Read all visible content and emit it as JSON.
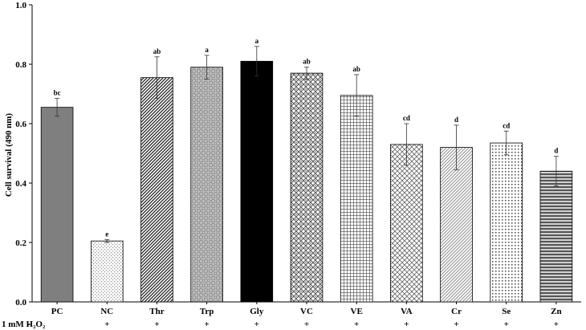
{
  "chart_data": {
    "type": "bar",
    "title": "",
    "xlabel": "",
    "ylabel": "Cell survival (490 nm)",
    "ylim": [
      0,
      1.0
    ],
    "yticks": [
      "0.0",
      "0.2",
      "0.4",
      "0.6",
      "0.8",
      "1.0"
    ],
    "ytick_values": [
      0,
      0.2,
      0.4,
      0.6,
      0.8,
      1.0
    ],
    "categories": [
      "PC",
      "NC",
      "Thr",
      "Trp",
      "Gly",
      "VC",
      "VE",
      "VA",
      "Cr",
      "Se",
      "Zn"
    ],
    "values": [
      0.655,
      0.205,
      0.755,
      0.79,
      0.81,
      0.77,
      0.695,
      0.53,
      0.52,
      0.535,
      0.44
    ],
    "errors": [
      0.03,
      0.005,
      0.07,
      0.04,
      0.05,
      0.02,
      0.07,
      0.07,
      0.075,
      0.04,
      0.05
    ],
    "significance": [
      "bc",
      "e",
      "ab",
      "a",
      "a",
      "ab",
      "ab",
      "cd",
      "d",
      "cd",
      "d"
    ],
    "treatment_label": "1 mM H₂O₂",
    "treatment": [
      "-",
      "+",
      "+",
      "+",
      "+",
      "+",
      "+",
      "+",
      "+",
      "+",
      "+"
    ],
    "patterns": [
      "solid-gray",
      "fine-dots",
      "diagonal",
      "check-dots",
      "solid-black",
      "diamond",
      "grid",
      "diag-cross",
      "diag-dense",
      "dot-grid",
      "horizontal"
    ]
  }
}
